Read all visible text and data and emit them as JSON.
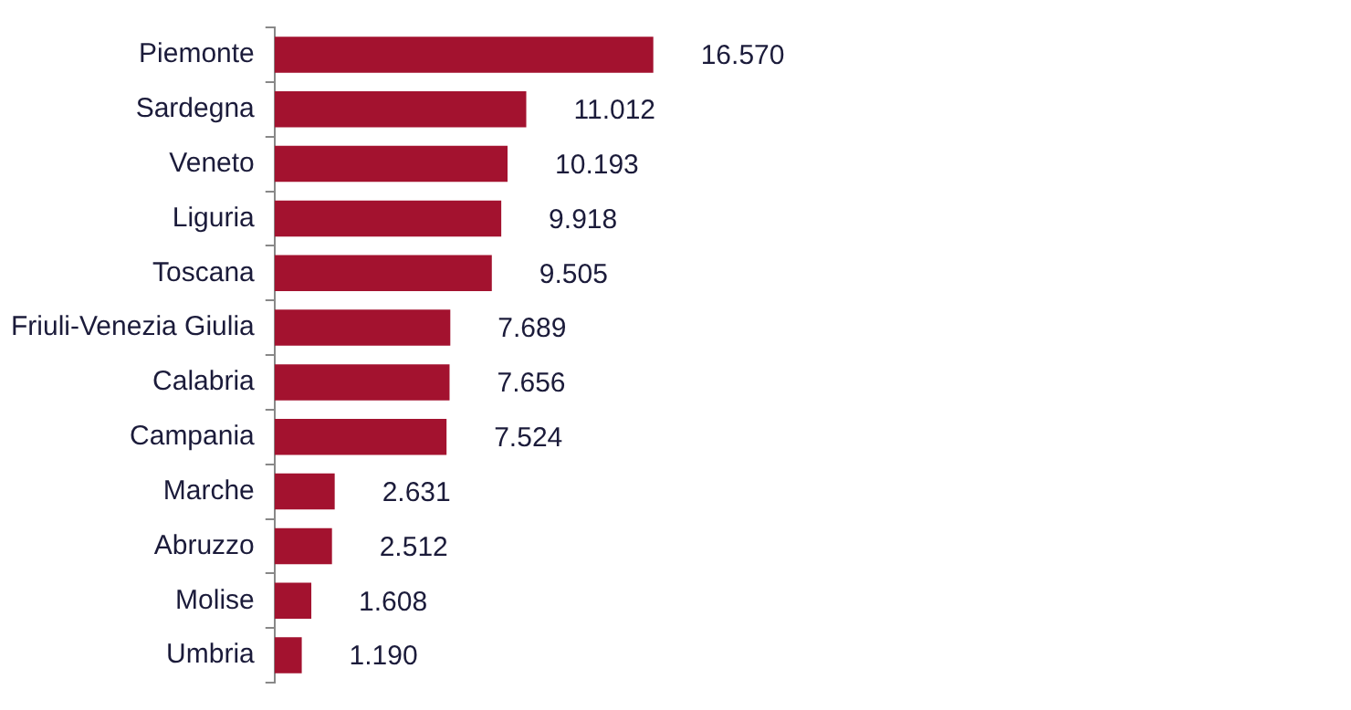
{
  "chart_data": {
    "type": "bar",
    "orientation": "horizontal",
    "categories": [
      "Piemonte",
      "Sardegna",
      "Veneto",
      "Liguria",
      "Toscana",
      "Friuli-Venezia Giulia",
      "Calabria",
      "Campania",
      "Marche",
      "Abruzzo",
      "Molise",
      "Umbria"
    ],
    "values": [
      16570,
      11012,
      10193,
      9918,
      9505,
      7689,
      7656,
      7524,
      2631,
      2512,
      1608,
      1190
    ],
    "value_labels": [
      "16.570",
      "11.012",
      "10.193",
      "9.918",
      "9.505",
      "7.689",
      "7.656",
      "7.524",
      "2.631",
      "2.512",
      "1.608",
      "1.190"
    ],
    "color": "#a3122f",
    "legend": false
  }
}
